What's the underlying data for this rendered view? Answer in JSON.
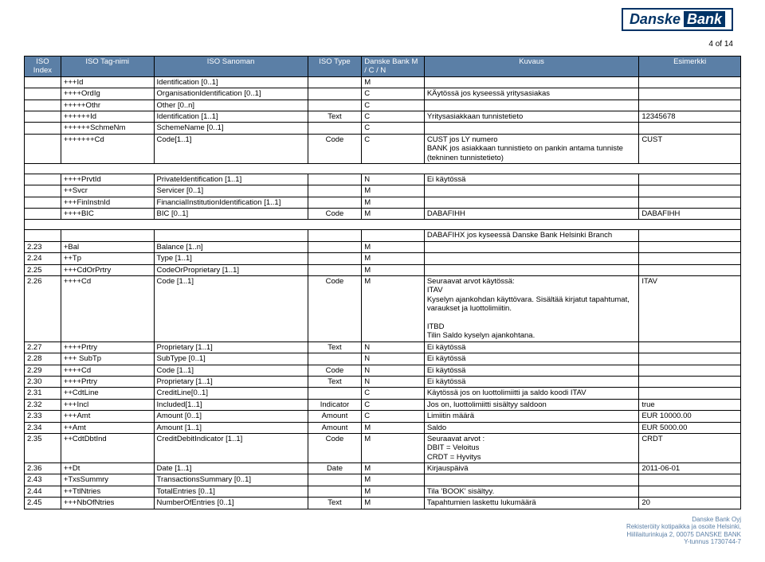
{
  "page_number": "4 of 14",
  "logo": {
    "part1": "Danske",
    "part2": "Bank"
  },
  "headers": {
    "index": "ISO Index",
    "tag": "ISO Tag-nimi",
    "iso": "ISO Sanoman",
    "type": "ISO Type",
    "mcn": "Danske Bank M / C / N",
    "kuvaus": "Kuvaus",
    "esim": "Esimerkki"
  },
  "rows": [
    {
      "idx": "",
      "tag": "+++Id",
      "iso": "Identification [0..1]",
      "type": "",
      "mcn": "M",
      "kuv": "",
      "es": ""
    },
    {
      "idx": "",
      "tag": "++++OrdIg",
      "iso": "OrganisationIdentification [0..1]",
      "type": "",
      "mcn": "C",
      "kuv": "KÄytössä jos kyseessä yritysasiakas",
      "es": ""
    },
    {
      "idx": "",
      "tag": "+++++Othr",
      "iso": "Other [0..n]",
      "type": "",
      "mcn": "C",
      "kuv": "",
      "es": ""
    },
    {
      "idx": "",
      "tag": "++++++Id",
      "iso": "Identification [1..1]",
      "type": "Text",
      "mcn": "C",
      "kuv": "Yritysasiakkaan tunnistetieto",
      "es": "12345678"
    },
    {
      "idx": "",
      "tag": "++++++SchmeNm",
      "iso": "SchemeName [0..1]",
      "type": "",
      "mcn": "C",
      "kuv": "",
      "es": ""
    },
    {
      "idx": "",
      "tag": "+++++++Cd",
      "iso": "Code[1..1]",
      "type": "Code",
      "mcn": "C",
      "kuv": "CUST jos LY numero\nBANK jos asiakkaan tunnistieto on pankin antama tunniste (tekninen tunnistetieto)",
      "es": "CUST"
    },
    {
      "idx": "",
      "tag": "++++PrvtId",
      "iso": "PrivateIdentification [1..1]",
      "type": "",
      "mcn": "N",
      "kuv": "Ei käytössä",
      "es": ""
    },
    {
      "idx": "",
      "tag": "++Svcr",
      "iso": "Servicer [0..1]",
      "type": "",
      "mcn": "M",
      "kuv": "",
      "es": ""
    },
    {
      "idx": "",
      "tag": "+++FinInstnId",
      "iso": "FinancialInstitutionIdentification [1..1]",
      "type": "",
      "mcn": "M",
      "kuv": "",
      "es": ""
    },
    {
      "idx": "",
      "tag": "++++BIC",
      "iso": "BIC [0..1]",
      "type": "Code",
      "mcn": "M",
      "kuv": "DABAFIHH",
      "es": "DABAFIHH"
    },
    {
      "idx": "",
      "tag": "",
      "iso": "",
      "type": "",
      "mcn": "",
      "kuv": "DABAFIHX jos kyseessä Danske Bank Helsinki Branch",
      "es": ""
    },
    {
      "idx": "2.23",
      "tag": "+Bal",
      "iso": "Balance [1..n]",
      "type": "",
      "mcn": "M",
      "kuv": "",
      "es": ""
    },
    {
      "idx": "2.24",
      "tag": "++Tp",
      "iso": "Type [1..1]",
      "type": "",
      "mcn": "M",
      "kuv": "",
      "es": ""
    },
    {
      "idx": "2.25",
      "tag": "+++CdOrPrtry",
      "iso": "CodeOrProprietary [1..1]",
      "type": "",
      "mcn": "M",
      "kuv": "",
      "es": ""
    },
    {
      "idx": "2.26",
      "tag": "++++Cd",
      "iso": "Code [1..1]",
      "type": "Code",
      "mcn": "M",
      "kuv": "Seuraavat arvot käytössä:\nITAV\nKyselyn ajankohdan käyttövara. Sisältää kirjatut tapahtumat, varaukset ja luottolimiitin.\n\nITBD\nTilin Saldo kyselyn ajankohtana.",
      "es": "ITAV"
    },
    {
      "idx": "2.27",
      "tag": "++++Prtry",
      "iso": "Proprietary [1..1]",
      "type": "Text",
      "mcn": "N",
      "kuv": "Ei käytössä",
      "es": ""
    },
    {
      "idx": "2.28",
      "tag": "+++ SubTp",
      "iso": "SubType [0..1]",
      "type": "",
      "mcn": "N",
      "kuv": "Ei käytössä",
      "es": ""
    },
    {
      "idx": "2.29",
      "tag": "++++Cd",
      "iso": "Code [1..1]",
      "type": "Code",
      "mcn": "N",
      "kuv": "Ei käytössä",
      "es": ""
    },
    {
      "idx": "2.30",
      "tag": "++++Prtry",
      "iso": "Proprietary [1..1]",
      "type": "Text",
      "mcn": "N",
      "kuv": "Ei käytössä",
      "es": ""
    },
    {
      "idx": "2.31",
      "tag": "++CdtLine",
      "iso": "CreditLine[0..1]",
      "type": "",
      "mcn": "C",
      "kuv": "Käytössä jos on luottolimiitti ja saldo koodi ITAV",
      "es": ""
    },
    {
      "idx": "2.32",
      "tag": "+++Incl",
      "iso": "Included[1..1]",
      "type": "Indicator",
      "mcn": "C",
      "kuv": "Jos on, luottolimiitti sisältyy saldoon",
      "es": "true"
    },
    {
      "idx": "2.33",
      "tag": "+++Amt",
      "iso": "Amount [0..1]",
      "type": "Amount",
      "mcn": "C",
      "kuv": "Limiitin määrä",
      "es": "EUR 10000.00"
    },
    {
      "idx": "2.34",
      "tag": "++Amt",
      "iso": "Amount [1..1]",
      "type": "Amount",
      "mcn": "M",
      "kuv": "Saldo",
      "es": "EUR 5000.00"
    },
    {
      "idx": "2.35",
      "tag": "++CdtDbtInd",
      "iso": "CreditDebitIndicator [1..1]",
      "type": "Code",
      "mcn": "M",
      "kuv": "Seuraavat arvot :\nDBIT = Veloitus\nCRDT = Hyvitys",
      "es": "CRDT"
    },
    {
      "idx": "2.36",
      "tag": "++Dt",
      "iso": "Date [1..1]",
      "type": "Date",
      "mcn": "M",
      "kuv": "Kirjauspäivä",
      "es": "2011-06-01"
    },
    {
      "idx": "2.43",
      "tag": "+TxsSummry",
      "iso": "TransactionsSummary [0..1]",
      "type": "",
      "mcn": "M",
      "kuv": "",
      "es": ""
    },
    {
      "idx": "2.44",
      "tag": "++TtlNtries",
      "iso": "TotalEntries [0..1]",
      "type": "",
      "mcn": "M",
      "kuv": "Tila 'BOOK' sisältyy.",
      "es": ""
    },
    {
      "idx": "2.45",
      "tag": "+++NbOfNtries",
      "iso": "NumberOfEntries [0..1]",
      "type": "Text",
      "mcn": "M",
      "kuv": "Tapahtumien laskettu lukumäärä",
      "es": "20"
    }
  ],
  "footer": {
    "l1": "Danske Bank Oyj",
    "l2": "Rekisteröity kotipaikka ja osoite Helsinki,",
    "l3": "Hiililaiturinkuja 2, 00075 DANSKE BANK",
    "l4": "Y-tunnus 1730744-7"
  }
}
